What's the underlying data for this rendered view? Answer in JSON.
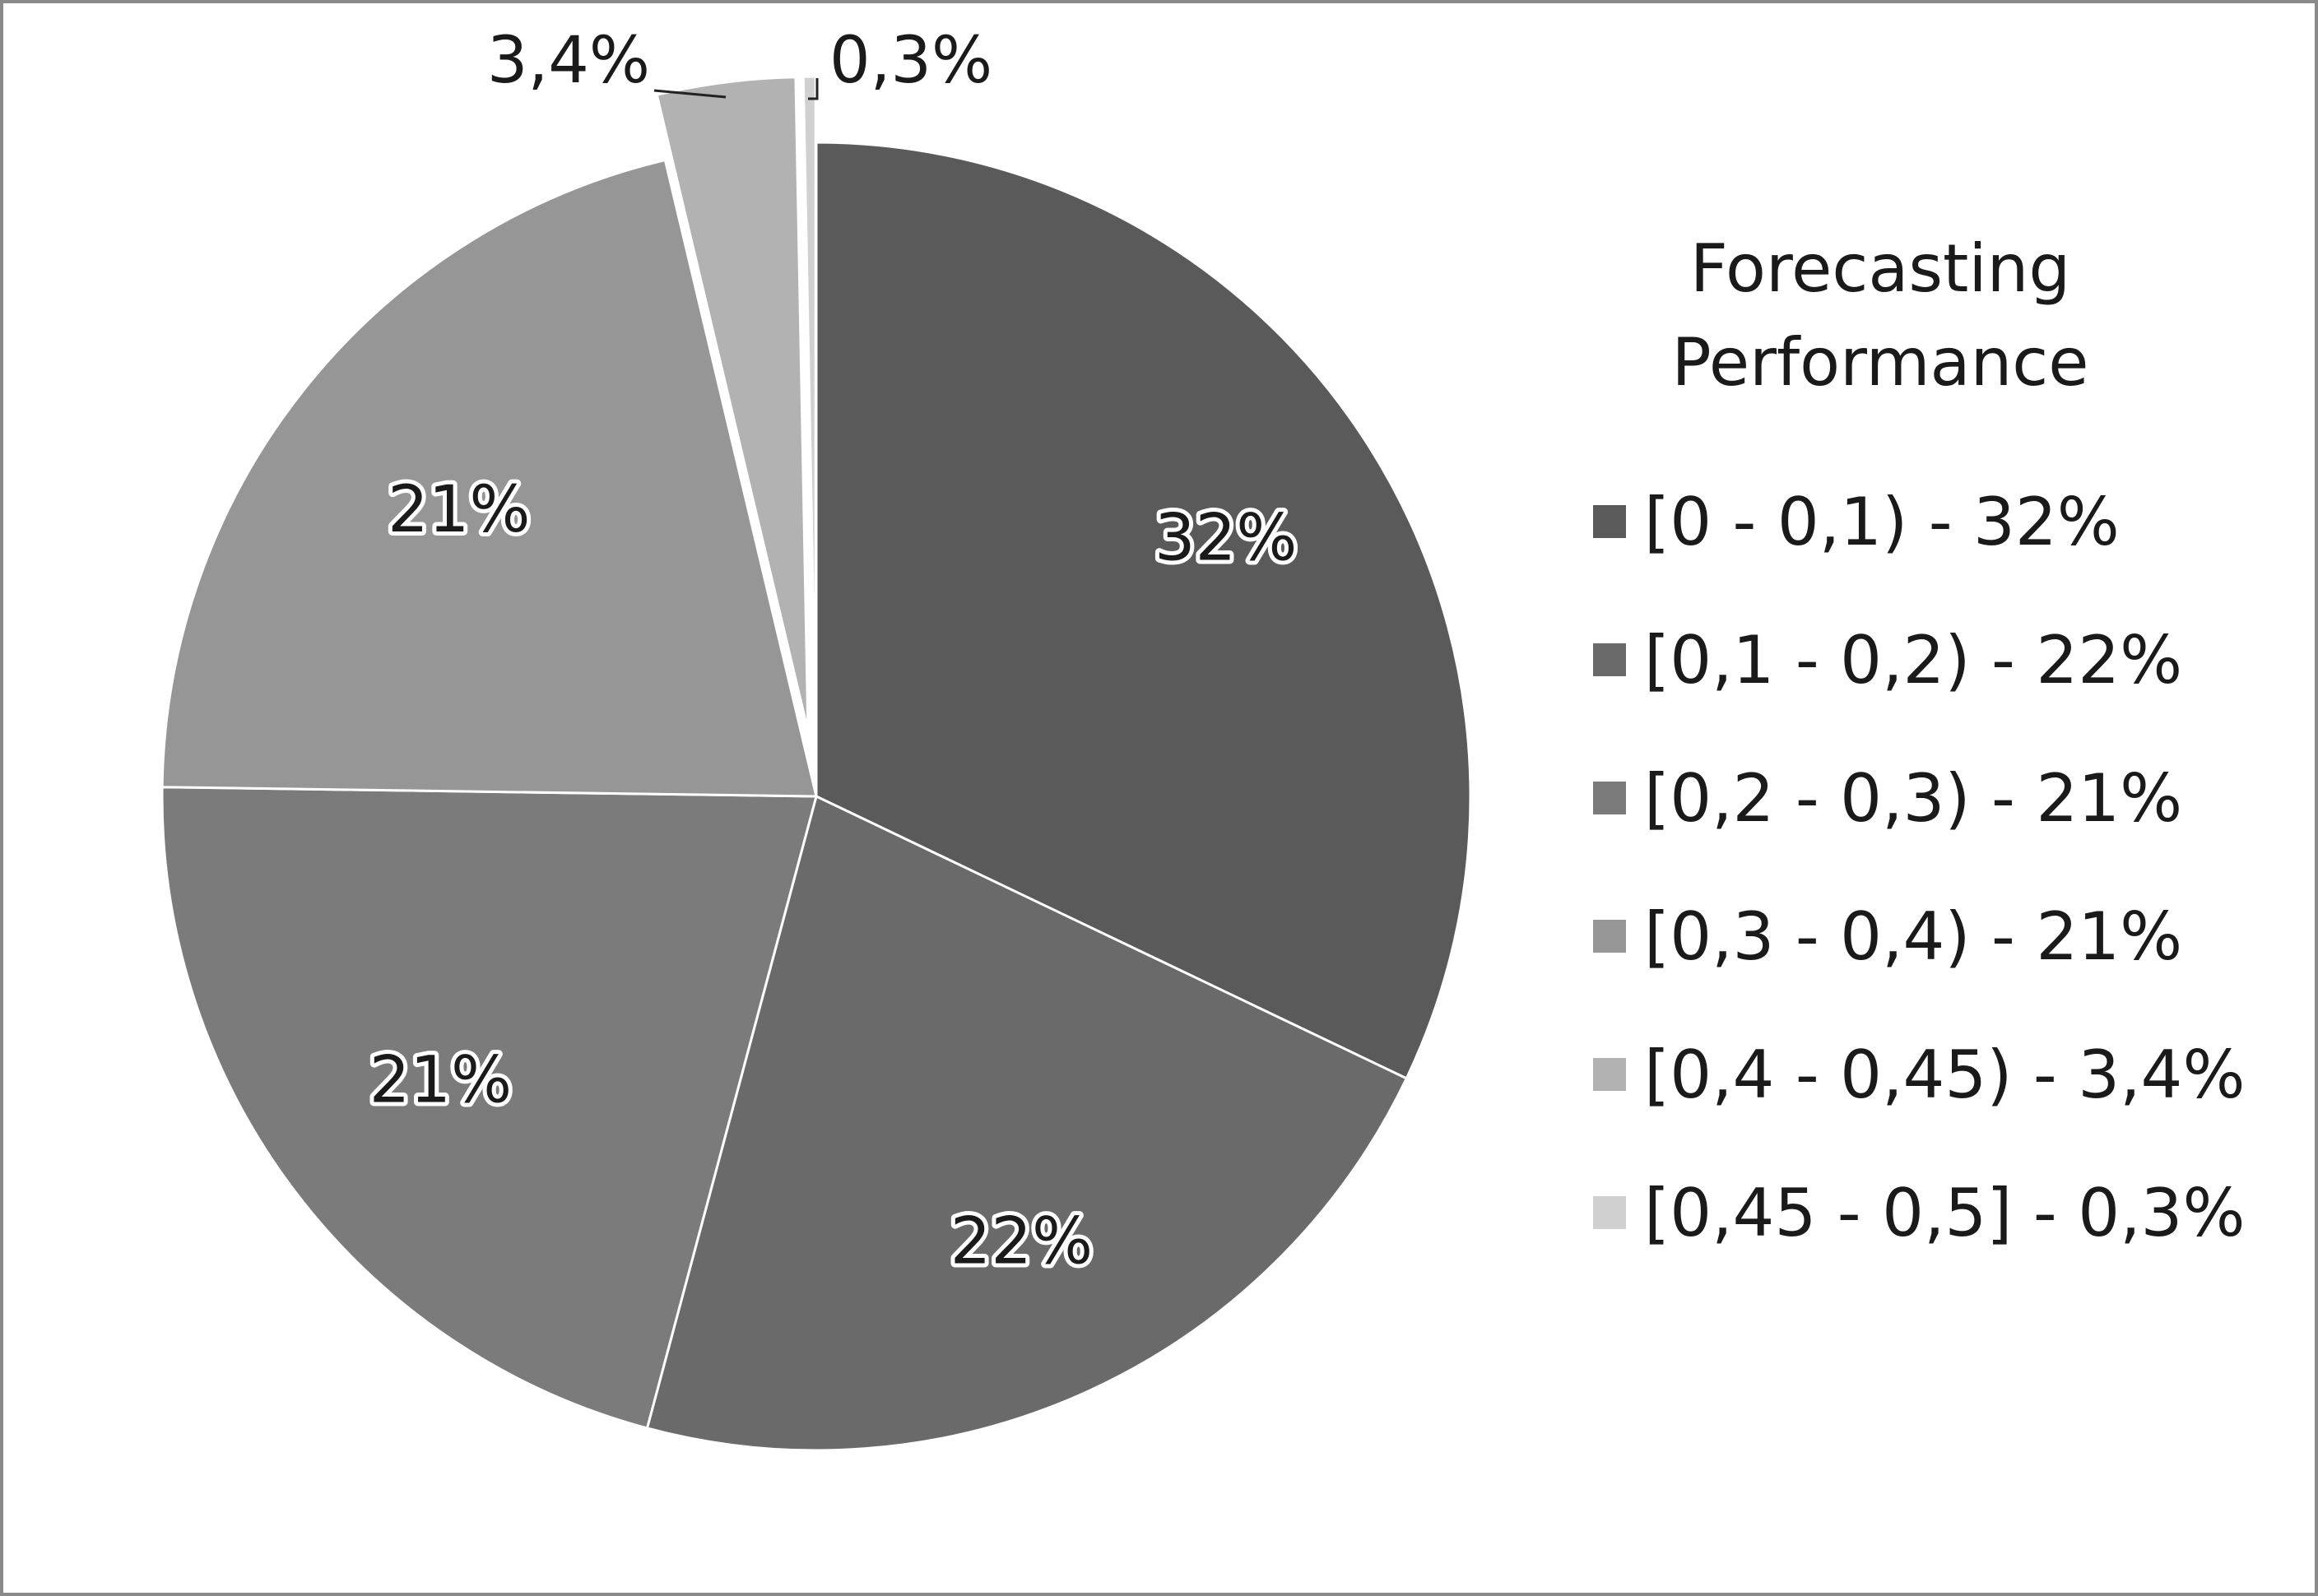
{
  "chart_data": {
    "type": "pie",
    "legend_title": "Forecasting Performance",
    "legend_position": "right",
    "start_angle_deg": 0,
    "direction": "clockwise",
    "slices": [
      {
        "category": "[0 - 0,1)",
        "value": 32,
        "label": "32%",
        "legend": "[0 - 0,1) - 32%",
        "color": "#5a5a5a",
        "label_outside": false,
        "exploded": false
      },
      {
        "category": "[0,1 - 0,2)",
        "value": 22,
        "label": "22%",
        "legend": "[0,1 - 0,2) - 22%",
        "color": "#6a6a6a",
        "label_outside": false,
        "exploded": false
      },
      {
        "category": "[0,2 - 0,3)",
        "value": 21,
        "label": "21%",
        "legend": "[0,2 - 0,3) - 21%",
        "color": "#7b7b7b",
        "label_outside": false,
        "exploded": false
      },
      {
        "category": "[0,3 - 0,4)",
        "value": 21,
        "label": "21%",
        "legend": "[0,3 - 0,4) - 21%",
        "color": "#969696",
        "label_outside": false,
        "exploded": false
      },
      {
        "category": "[0,4 - 0,45)",
        "value": 3.4,
        "label": "3,4%",
        "legend": "[0,4 - 0,45) - 3,4%",
        "color": "#b2b2b2",
        "label_outside": true,
        "exploded": true
      },
      {
        "category": "[0,45 - 0,5]",
        "value": 0.3,
        "label": "0,3%",
        "legend": "[0,45 - 0,5] - 0,3%",
        "color": "#d0d0d0",
        "label_outside": true,
        "exploded": true
      }
    ]
  }
}
